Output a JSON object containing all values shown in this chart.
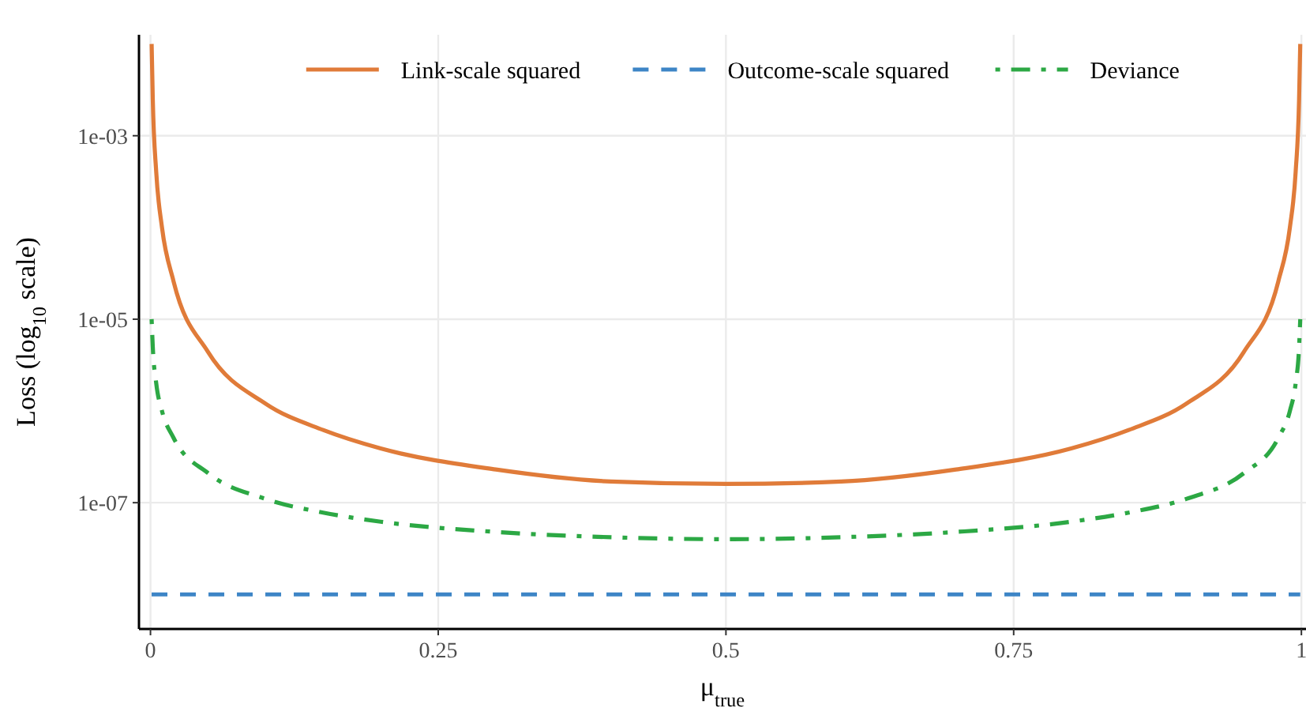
{
  "chart_data": {
    "type": "line",
    "xlabel": "μ$_{true}$",
    "ylabel": "Loss (log$_{10}$ scale)",
    "x": [
      0.001,
      0.002,
      0.005,
      0.01,
      0.02,
      0.05,
      0.1,
      0.15,
      0.2,
      0.3,
      0.4,
      0.5,
      0.6,
      0.7,
      0.8,
      0.85,
      0.9,
      0.95,
      0.98,
      0.99,
      0.995,
      0.998,
      0.999
    ],
    "series": [
      {
        "name": "Link-scale squared",
        "color": "#e07b39",
        "line_style": "solid",
        "values": [
          0.01,
          0.0025,
          0.0004,
          0.0001,
          2.6e-05,
          4.4e-06,
          1.2e-06,
          6.2e-07,
          3.9e-07,
          2.3e-07,
          1.7e-07,
          1.6e-07,
          1.7e-07,
          2.3e-07,
          3.9e-07,
          6.2e-07,
          1.2e-06,
          4.4e-06,
          2.6e-05,
          0.0001,
          0.0004,
          0.0025,
          0.01
        ]
      },
      {
        "name": "Outcome-scale squared",
        "color": "#3d85c6",
        "line_style": "dashed",
        "values": [
          1e-08,
          1e-08,
          1e-08,
          1e-08,
          1e-08,
          1e-08,
          1e-08,
          1e-08,
          1e-08,
          1e-08,
          1e-08,
          1e-08,
          1e-08,
          1e-08,
          1e-08,
          1e-08,
          1e-08,
          1e-08,
          1e-08,
          1e-08,
          1e-08,
          1e-08,
          1e-08
        ]
      },
      {
        "name": "Deviance",
        "color": "#2ca844",
        "line_style": "dashdot",
        "values": [
          1e-05,
          5e-06,
          2e-06,
          1e-06,
          5.1e-07,
          2.1e-07,
          1.1e-07,
          7.8e-08,
          6.2e-08,
          4.8e-08,
          4.2e-08,
          4e-08,
          4.2e-08,
          4.8e-08,
          6.2e-08,
          7.8e-08,
          1.1e-07,
          2.1e-07,
          5.1e-07,
          1e-06,
          2e-06,
          5e-06,
          1e-05
        ]
      }
    ],
    "log": "y",
    "xlim": [
      -0.01,
      1.004
    ],
    "ylim": [
      4.2e-09,
      0.0126
    ],
    "xticks": [
      0,
      0.25,
      0.5,
      0.75,
      1
    ],
    "yticks": [
      {
        "value": 0.001,
        "label": "1e-03"
      },
      {
        "value": 1e-05,
        "label": "1e-05"
      },
      {
        "value": 1e-07,
        "label": "1e-07"
      }
    ],
    "grid": true,
    "legend": "top"
  }
}
